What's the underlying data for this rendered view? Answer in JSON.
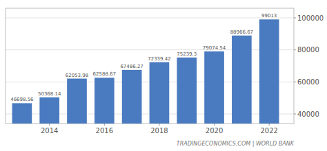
{
  "chart_data": {
    "type": "bar",
    "x": [
      2013,
      2014,
      2015,
      2016,
      2017,
      2018,
      2019,
      2020,
      2021,
      2022
    ],
    "values": [
      46698.56,
      50368.14,
      62053.98,
      62588.67,
      67486.27,
      72339.42,
      75239.3,
      79074.54,
      88966.67,
      99013
    ],
    "color": "#4a7abf",
    "xlim": [
      2012.4,
      2022.9
    ],
    "xticks": [
      2014,
      2016,
      2018,
      2020,
      2022
    ],
    "ylim": [
      34000,
      106000
    ],
    "yticks": [
      40000,
      60000,
      80000,
      100000
    ],
    "grid": true,
    "data_labels": true,
    "annotations": [
      "TRADINGECONOMICS.COM | WORLD BANK"
    ]
  }
}
